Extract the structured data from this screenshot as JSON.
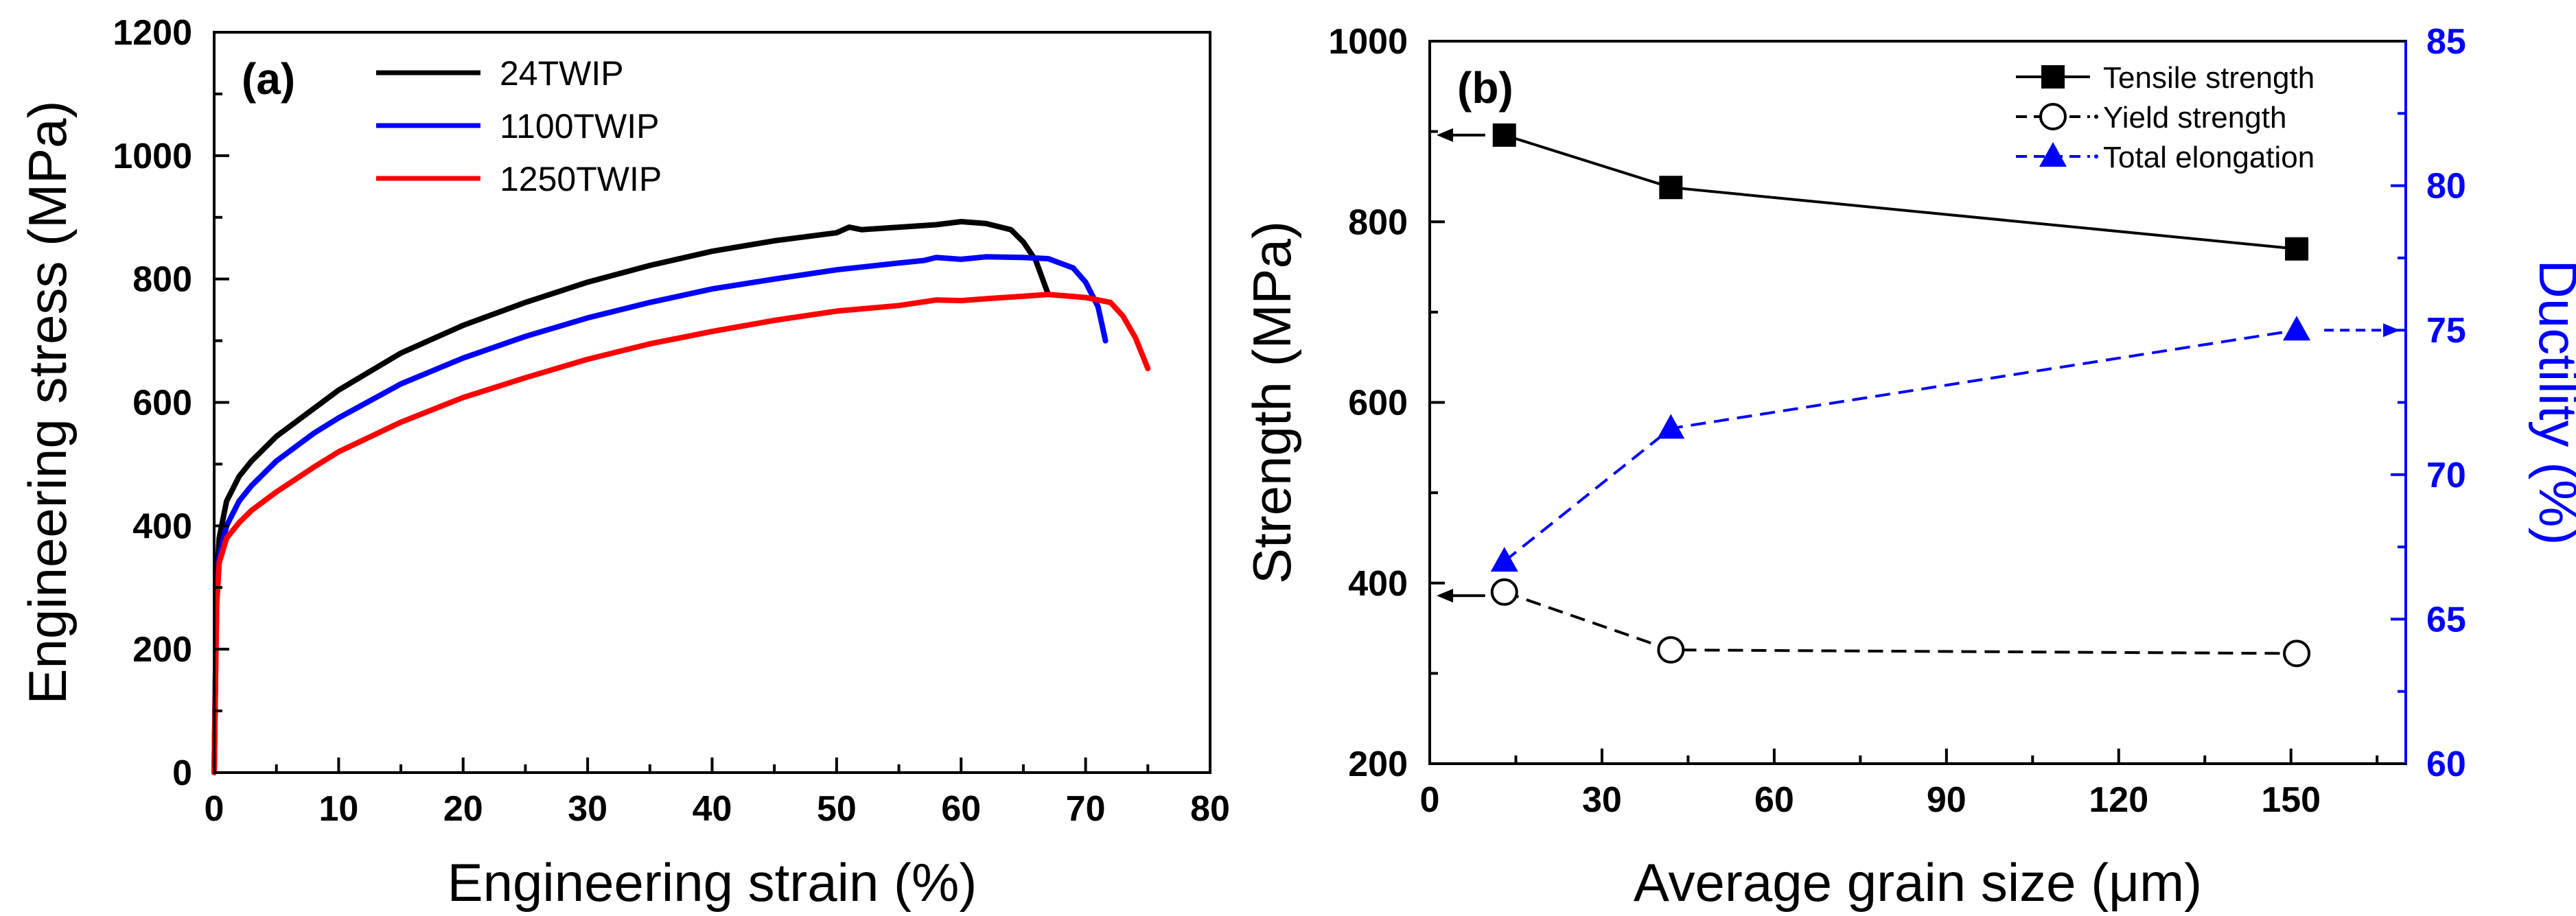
{
  "chart_data": [
    {
      "type": "line",
      "panel_label": "(a)",
      "xlabel": "Engineering strain (%)",
      "ylabel": "Engineering stress (MPa)",
      "xlim": [
        0,
        80
      ],
      "ylim": [
        0,
        1200
      ],
      "x_ticks": [
        0,
        10,
        20,
        30,
        40,
        50,
        60,
        70,
        80
      ],
      "y_ticks": [
        0,
        200,
        400,
        600,
        800,
        1000,
        1200
      ],
      "legend_position": "top-left",
      "series": [
        {
          "name": "24TWIP",
          "color": "#000000",
          "points": [
            [
              0,
              0
            ],
            [
              0.2,
              300
            ],
            [
              0.4,
              380
            ],
            [
              1,
              440
            ],
            [
              2,
              480
            ],
            [
              3,
              505
            ],
            [
              5,
              545
            ],
            [
              8,
              590
            ],
            [
              10,
              620
            ],
            [
              15,
              680
            ],
            [
              20,
              725
            ],
            [
              25,
              762
            ],
            [
              30,
              795
            ],
            [
              35,
              822
            ],
            [
              40,
              845
            ],
            [
              45,
              862
            ],
            [
              50,
              875
            ],
            [
              51,
              884
            ],
            [
              52,
              880
            ],
            [
              55,
              884
            ],
            [
              58,
              888
            ],
            [
              60,
              893
            ],
            [
              62,
              890
            ],
            [
              64,
              880
            ],
            [
              65,
              860
            ],
            [
              66,
              830
            ],
            [
              67,
              775
            ]
          ]
        },
        {
          "name": "1100TWIP",
          "color": "#0000ff",
          "points": [
            [
              0,
              0
            ],
            [
              0.2,
              280
            ],
            [
              0.4,
              350
            ],
            [
              1,
              400
            ],
            [
              2,
              440
            ],
            [
              3,
              465
            ],
            [
              5,
              505
            ],
            [
              8,
              550
            ],
            [
              10,
              575
            ],
            [
              15,
              630
            ],
            [
              20,
              672
            ],
            [
              25,
              707
            ],
            [
              30,
              737
            ],
            [
              35,
              762
            ],
            [
              40,
              784
            ],
            [
              45,
              800
            ],
            [
              50,
              815
            ],
            [
              55,
              826
            ],
            [
              57,
              830
            ],
            [
              58,
              835
            ],
            [
              60,
              832
            ],
            [
              62,
              836
            ],
            [
              65,
              835
            ],
            [
              67,
              833
            ],
            [
              69,
              818
            ],
            [
              70,
              795
            ],
            [
              71,
              755
            ],
            [
              71.6,
              700
            ]
          ]
        },
        {
          "name": "1250TWIP",
          "color": "#ff0000",
          "points": [
            [
              0,
              0
            ],
            [
              0.2,
              270
            ],
            [
              0.4,
              340
            ],
            [
              1,
              380
            ],
            [
              2,
              405
            ],
            [
              3,
              425
            ],
            [
              5,
              455
            ],
            [
              8,
              495
            ],
            [
              10,
              520
            ],
            [
              15,
              568
            ],
            [
              20,
              608
            ],
            [
              25,
              640
            ],
            [
              30,
              670
            ],
            [
              35,
              695
            ],
            [
              40,
              715
            ],
            [
              45,
              733
            ],
            [
              50,
              748
            ],
            [
              55,
              757
            ],
            [
              58,
              766
            ],
            [
              60,
              765
            ],
            [
              62,
              768
            ],
            [
              65,
              772
            ],
            [
              67,
              775
            ],
            [
              70,
              770
            ],
            [
              72,
              762
            ],
            [
              73,
              740
            ],
            [
              74,
              705
            ],
            [
              75,
              655
            ]
          ]
        }
      ]
    },
    {
      "type": "line",
      "panel_label": "(b)",
      "xlabel": "Average grain size (μm)",
      "ylabel": "Strength (MPa)",
      "y2label": "Ductility (%)",
      "xlim": [
        0,
        170
      ],
      "ylim": [
        200,
        1000
      ],
      "y2lim": [
        60,
        85
      ],
      "x_ticks": [
        0,
        30,
        60,
        90,
        120,
        150
      ],
      "y_ticks": [
        200,
        400,
        600,
        800,
        1000
      ],
      "y2_ticks": [
        60,
        65,
        70,
        75,
        80,
        85
      ],
      "legend_position": "top-right",
      "categories_x": [
        13,
        42,
        151
      ],
      "series": [
        {
          "name": "Tensile strength",
          "axis": "left",
          "color": "#000000",
          "marker": "square",
          "line": "solid",
          "values": [
            896,
            838,
            770
          ]
        },
        {
          "name": "Yield strength",
          "axis": "left",
          "color": "#000000",
          "marker": "circle-open",
          "line": "dashed",
          "values": [
            390,
            326,
            322
          ]
        },
        {
          "name": "Total elongation",
          "axis": "right",
          "color": "#0000ff",
          "marker": "triangle",
          "line": "dashed",
          "values": [
            67,
            71.6,
            75
          ]
        }
      ],
      "annotations": [
        {
          "kind": "arrow-left",
          "series": "Tensile strength",
          "x": 13,
          "y": 896
        },
        {
          "kind": "arrow-left",
          "series": "Yield strength",
          "x": 13,
          "y": 386
        },
        {
          "kind": "arrow-right",
          "series": "Total elongation",
          "x": 151,
          "y": 75
        }
      ]
    }
  ]
}
